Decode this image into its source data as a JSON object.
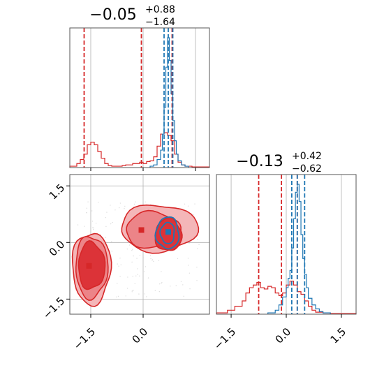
{
  "colors": {
    "red": "#d62728",
    "blue": "#1f77b4",
    "red_fill_light": "#f4b6b8",
    "red_fill_mid": "#ec8488",
    "red_fill_dark": "#dc3338",
    "grid": "#b0b0b0"
  },
  "chart_data": [
    {
      "type": "histogram",
      "panel": "top-left",
      "title": {
        "value": "−0.05",
        "plus": "+0.88",
        "minus": "−1.64"
      },
      "xlim": [
        -2.1,
        1.9
      ],
      "grid": true,
      "series": [
        {
          "name": "",
          "color": "#d62728",
          "bin_edges": [
            -2.1,
            -1.9,
            -1.8,
            -1.7,
            -1.6,
            -1.5,
            -1.4,
            -1.3,
            -1.2,
            -1.1,
            -1.0,
            -0.9,
            -0.8,
            -0.7,
            -0.6,
            -0.5,
            -0.4,
            -0.3,
            -0.2,
            -0.1,
            0.0,
            0.1,
            0.2,
            0.3,
            0.4,
            0.5,
            0.6,
            0.7,
            0.8,
            0.9,
            1.0,
            1.1,
            1.2,
            1.4,
            1.9
          ],
          "counts": [
            0.01,
            0.03,
            0.06,
            0.1,
            0.17,
            0.19,
            0.17,
            0.12,
            0.07,
            0.03,
            0.015,
            0.01,
            0.01,
            0.01,
            0.015,
            0.02,
            0.02,
            0.03,
            0.03,
            0.04,
            0.03,
            0.045,
            0.05,
            0.08,
            0.16,
            0.25,
            0.26,
            0.24,
            0.2,
            0.1,
            0.04,
            0.02,
            0.01,
            0.005
          ]
        },
        {
          "name": "",
          "color": "#1f77b4",
          "bin_edges": [
            0.2,
            0.3,
            0.4,
            0.5,
            0.55,
            0.6,
            0.65,
            0.7,
            0.75,
            0.8,
            0.85,
            0.9,
            0.95,
            1.0,
            1.1,
            1.2,
            1.3
          ],
          "counts": [
            0.01,
            0.02,
            0.06,
            0.13,
            0.25,
            0.45,
            0.75,
            0.97,
            0.8,
            0.55,
            0.35,
            0.2,
            0.1,
            0.05,
            0.02,
            0.01
          ]
        }
      ],
      "quantile_lines": [
        {
          "color": "#d62728",
          "x": [
            -1.69,
            -0.05,
            0.83
          ]
        },
        {
          "color": "#1f77b4",
          "x": [
            0.6,
            0.72,
            0.85
          ]
        }
      ]
    },
    {
      "type": "histogram",
      "panel": "bottom-right",
      "title": {
        "value": "−0.13",
        "plus": "+0.42",
        "minus": "−0.62"
      },
      "xlim": [
        -1.9,
        1.9
      ],
      "xticks": [
        "−1.5",
        "0.0",
        "1.5"
      ],
      "xtick_values": [
        -1.5,
        0.0,
        1.5
      ],
      "grid": true,
      "series": [
        {
          "name": "",
          "color": "#d62728",
          "bin_edges": [
            -1.9,
            -1.6,
            -1.4,
            -1.2,
            -1.1,
            -1.0,
            -0.9,
            -0.8,
            -0.7,
            -0.6,
            -0.5,
            -0.4,
            -0.3,
            -0.2,
            -0.1,
            0.0,
            0.1,
            0.2,
            0.3,
            0.4,
            0.5,
            0.6,
            0.7,
            0.8,
            1.0,
            1.2,
            1.9
          ],
          "counts": [
            0.01,
            0.03,
            0.06,
            0.1,
            0.16,
            0.2,
            0.22,
            0.24,
            0.2,
            0.19,
            0.21,
            0.2,
            0.16,
            0.14,
            0.16,
            0.22,
            0.25,
            0.22,
            0.17,
            0.15,
            0.1,
            0.06,
            0.03,
            0.015,
            0.01,
            0.005
          ]
        },
        {
          "name": "",
          "color": "#1f77b4",
          "bin_edges": [
            -0.5,
            -0.3,
            -0.2,
            -0.1,
            0.0,
            0.05,
            0.1,
            0.15,
            0.2,
            0.25,
            0.3,
            0.35,
            0.4,
            0.45,
            0.5,
            0.55,
            0.6,
            0.7,
            0.8,
            0.9,
            1.0,
            1.2
          ],
          "counts": [
            0.01,
            0.03,
            0.07,
            0.13,
            0.2,
            0.27,
            0.33,
            0.5,
            0.72,
            0.92,
            0.98,
            0.85,
            0.6,
            0.42,
            0.3,
            0.2,
            0.12,
            0.07,
            0.04,
            0.02,
            0.01
          ]
        }
      ],
      "quantile_lines": [
        {
          "color": "#d62728",
          "x": [
            -0.75,
            -0.13,
            0.3
          ]
        },
        {
          "color": "#1f77b4",
          "x": [
            0.15,
            0.3,
            0.5
          ]
        }
      ]
    },
    {
      "type": "contour",
      "panel": "bottom-left",
      "xlim": [
        -2.1,
        1.9
      ],
      "ylim": [
        -1.9,
        1.8
      ],
      "xticks": [
        "−1.5",
        "0.0"
      ],
      "xtick_values": [
        -1.5,
        0.0
      ],
      "yticks": [
        "−1.5",
        "0.0",
        "1.5"
      ],
      "ytick_values": [
        -1.5,
        0.0,
        1.5
      ],
      "grid": true,
      "red_levels": [
        {
          "level": "outer",
          "blobs": [
            {
              "cx": -1.48,
              "cy": -0.68,
              "rx": 0.55,
              "ry": 0.95
            },
            {
              "cx": 0.45,
              "cy": 0.38,
              "rx": 1.1,
              "ry": 0.62
            }
          ]
        },
        {
          "level": "middle",
          "blobs": [
            {
              "cx": -1.48,
              "cy": -0.65,
              "rx": 0.46,
              "ry": 0.82
            },
            {
              "cx": 0.28,
              "cy": 0.33,
              "rx": 0.78,
              "ry": 0.48
            }
          ]
        },
        {
          "level": "inner",
          "blobs": [
            {
              "cx": -1.48,
              "cy": -0.62,
              "rx": 0.38,
              "ry": 0.62
            },
            {
              "cx": 0.72,
              "cy": 0.2,
              "rx": 0.38,
              "ry": 0.43
            }
          ]
        }
      ],
      "blue_levels": [
        {
          "cx": 0.7,
          "cy": 0.25,
          "rx": 0.33,
          "ry": 0.42
        },
        {
          "cx": 0.7,
          "cy": 0.25,
          "rx": 0.2,
          "ry": 0.28
        }
      ],
      "markers": [
        {
          "color": "#d62728",
          "x": -1.55,
          "y": -0.62
        },
        {
          "color": "#d62728",
          "x": -0.05,
          "y": 0.33
        },
        {
          "color": "#1f77b4",
          "x": 0.72,
          "y": 0.28
        }
      ],
      "scatter_color": "#c8c8c8"
    }
  ]
}
